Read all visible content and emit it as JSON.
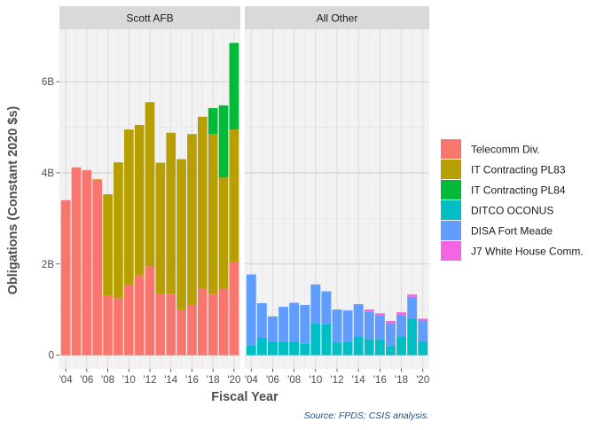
{
  "chart_data": {
    "type": "bar",
    "stacked": true,
    "facets": [
      "Scott AFB",
      "All Other"
    ],
    "x": [
      2004,
      2005,
      2006,
      2007,
      2008,
      2009,
      2010,
      2011,
      2012,
      2013,
      2014,
      2015,
      2016,
      2017,
      2018,
      2019,
      2020
    ],
    "x_tick_labels": [
      "'04",
      "'06",
      "'08",
      "'10",
      "'12",
      "'14",
      "'16",
      "'18",
      "'20"
    ],
    "x_tick_values": [
      2004,
      2006,
      2008,
      2010,
      2012,
      2014,
      2016,
      2018,
      2020
    ],
    "y_tick_labels": [
      "0",
      "2B",
      "4B",
      "6B"
    ],
    "y_tick_values": [
      0,
      2,
      4,
      6
    ],
    "ylim": [
      -0.3,
      7.15
    ],
    "xlabel": "Fiscal Year",
    "ylabel": "Obligations (Constant 2020 $s)",
    "caption": "Source: FPDS; CSIS analysis.",
    "grid": true,
    "legend_position": "right",
    "series": [
      {
        "name": "Telecomm Div.",
        "color": "#F8766D",
        "values": {
          "Scott AFB": [
            3.4,
            4.12,
            4.06,
            3.85,
            1.3,
            1.25,
            1.55,
            1.75,
            1.95,
            1.35,
            1.35,
            1.0,
            1.1,
            1.45,
            1.35,
            1.45,
            2.05
          ],
          "All Other": [
            0,
            0,
            0,
            0,
            0,
            0,
            0,
            0,
            0,
            0,
            0,
            0,
            0,
            0,
            0,
            0,
            0
          ]
        }
      },
      {
        "name": "IT Contracting PL83",
        "color": "#B79F00",
        "values": {
          "Scott AFB": [
            0,
            0,
            0,
            0.01,
            2.23,
            2.98,
            3.4,
            3.3,
            3.6,
            2.87,
            3.53,
            3.3,
            3.75,
            3.78,
            3.5,
            2.45,
            2.9
          ],
          "All Other": [
            0,
            0,
            0,
            0,
            0,
            0,
            0,
            0,
            0,
            0,
            0,
            0,
            0,
            0,
            0,
            0,
            0
          ]
        }
      },
      {
        "name": "IT Contracting PL84",
        "color": "#00BA38",
        "values": {
          "Scott AFB": [
            0,
            0,
            0,
            0,
            0,
            0,
            0,
            0,
            0,
            0,
            0,
            0,
            0,
            0,
            0.57,
            1.58,
            1.9
          ],
          "All Other": [
            0,
            0,
            0,
            0,
            0,
            0,
            0,
            0,
            0,
            0,
            0,
            0,
            0,
            0,
            0,
            0,
            0
          ]
        }
      },
      {
        "name": "DITCO OCONUS",
        "color": "#00BFC4",
        "values": {
          "Scott AFB": [
            0,
            0,
            0,
            0,
            0,
            0,
            0,
            0,
            0,
            0,
            0,
            0,
            0,
            0,
            0,
            0,
            0
          ],
          "All Other": [
            0.22,
            0.38,
            0.3,
            0.3,
            0.3,
            0.25,
            0.7,
            0.68,
            0.28,
            0.3,
            0.4,
            0.35,
            0.35,
            0.2,
            0.4,
            0.8,
            0.3
          ]
        }
      },
      {
        "name": "DISA Fort Meade",
        "color": "#619CFF",
        "values": {
          "Scott AFB": [
            0,
            0,
            0,
            0,
            0,
            0,
            0,
            0,
            0,
            0,
            0,
            0,
            0,
            0,
            0,
            0,
            0
          ],
          "All Other": [
            1.55,
            0.76,
            0.55,
            0.76,
            0.85,
            0.85,
            0.85,
            0.72,
            0.72,
            0.68,
            0.7,
            0.6,
            0.52,
            0.5,
            0.48,
            0.48,
            0.45
          ]
        }
      },
      {
        "name": "J7 White House Comm.",
        "color": "#F564E3",
        "values": {
          "Scott AFB": [
            0,
            0,
            0,
            0,
            0,
            0,
            0,
            0,
            0,
            0,
            0,
            0,
            0,
            0,
            0,
            0,
            0
          ],
          "All Other": [
            0,
            0,
            0,
            0,
            0,
            0,
            0,
            0,
            0,
            0,
            0.02,
            0.05,
            0.05,
            0.05,
            0.06,
            0.05,
            0.05
          ]
        }
      }
    ]
  }
}
